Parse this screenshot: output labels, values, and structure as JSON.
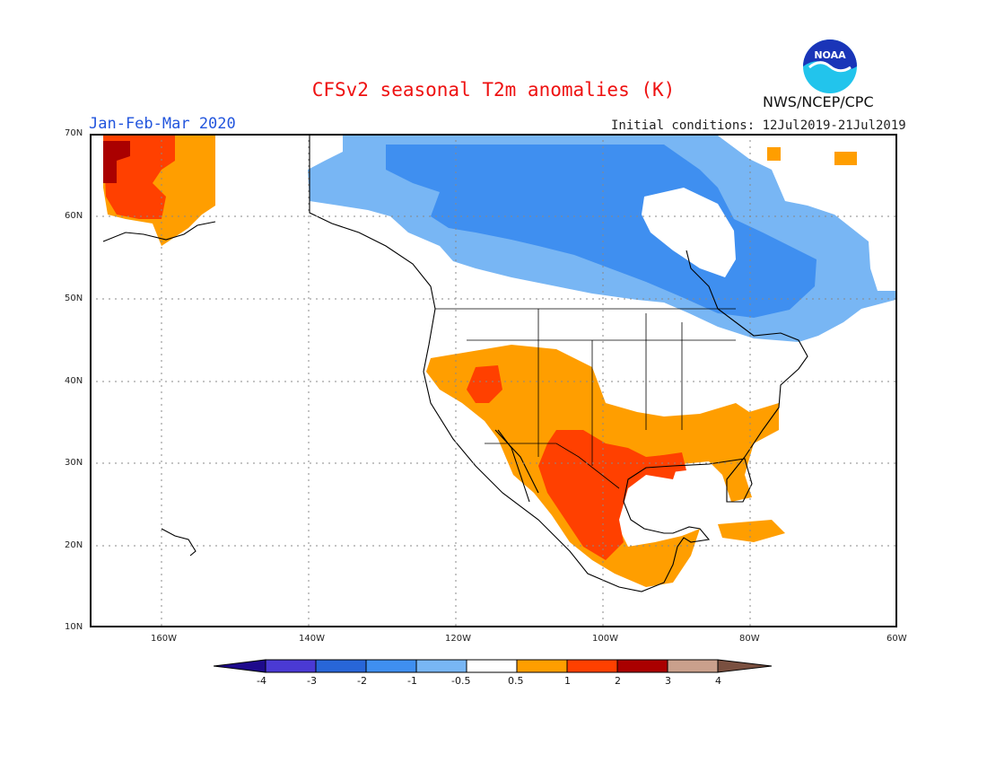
{
  "title": "CFSv2 seasonal T2m anomalies (K)",
  "period": "Jan-Feb-Mar 2020",
  "initial_conditions": "Initial conditions: 12Jul2019-21Jul2019",
  "agency": "NWS/NCEP/CPC",
  "logo_text": "NOAA",
  "logo_icon": "noaa-logo",
  "lat_labels": [
    "70N",
    "60N",
    "50N",
    "40N",
    "30N",
    "20N",
    "10N"
  ],
  "lon_labels": [
    "160W",
    "140W",
    "120W",
    "100W",
    "80W",
    "60W"
  ],
  "colorbar": {
    "tick_labels": [
      "-4",
      "-3",
      "-2",
      "-1",
      "-0.5",
      "0.5",
      "1",
      "2",
      "3",
      "4"
    ],
    "colors": [
      "#1e0a8c",
      "#4a3ad4",
      "#2866d8",
      "#3f8ff0",
      "#78b6f4",
      "#ffffff",
      "#ff9e00",
      "#ff4000",
      "#aa0000",
      "#caa08c",
      "#7a5040"
    ]
  },
  "colors": {
    "title": "#ee1111",
    "period": "#2255dd",
    "land": "#ffffff",
    "coast": "#000000"
  }
}
